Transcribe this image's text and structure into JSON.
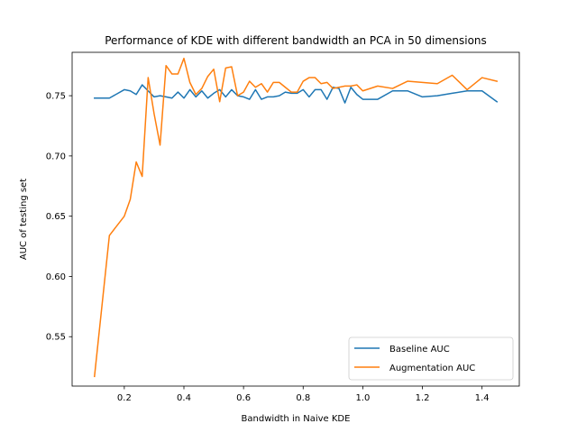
{
  "chart_data": {
    "type": "line",
    "title": "Performance of KDE with different bandwidth an PCA in 50 dimensions",
    "xlabel": "Bandwidth in Naive KDE",
    "ylabel": "AUC of testing set",
    "xlim": [
      0.025,
      1.525
    ],
    "ylim": [
      0.509,
      0.786
    ],
    "x_ticks": [
      0.2,
      0.4,
      0.6,
      0.8,
      1.0,
      1.2,
      1.4
    ],
    "x_tick_labels": [
      "0.2",
      "0.4",
      "0.6",
      "0.8",
      "1.0",
      "1.2",
      "1.4"
    ],
    "y_ticks": [
      0.55,
      0.6,
      0.65,
      0.7,
      0.75
    ],
    "y_tick_labels": [
      "0.55",
      "0.60",
      "0.65",
      "0.70",
      "0.75"
    ],
    "grid": false,
    "legend_position": "bottom-right",
    "series": [
      {
        "name": "Baseline AUC",
        "color": "#1f77b4",
        "points": [
          [
            0.1,
            0.748
          ],
          [
            0.15,
            0.748
          ],
          [
            0.2,
            0.755
          ],
          [
            0.22,
            0.754
          ],
          [
            0.24,
            0.751
          ],
          [
            0.26,
            0.759
          ],
          [
            0.28,
            0.754
          ],
          [
            0.3,
            0.749
          ],
          [
            0.32,
            0.75
          ],
          [
            0.34,
            0.749
          ],
          [
            0.36,
            0.748
          ],
          [
            0.38,
            0.753
          ],
          [
            0.4,
            0.748
          ],
          [
            0.42,
            0.755
          ],
          [
            0.44,
            0.749
          ],
          [
            0.46,
            0.754
          ],
          [
            0.48,
            0.748
          ],
          [
            0.5,
            0.752
          ],
          [
            0.52,
            0.755
          ],
          [
            0.54,
            0.749
          ],
          [
            0.56,
            0.755
          ],
          [
            0.58,
            0.75
          ],
          [
            0.6,
            0.749
          ],
          [
            0.62,
            0.747
          ],
          [
            0.64,
            0.755
          ],
          [
            0.66,
            0.747
          ],
          [
            0.68,
            0.749
          ],
          [
            0.7,
            0.749
          ],
          [
            0.72,
            0.75
          ],
          [
            0.74,
            0.753
          ],
          [
            0.76,
            0.752
          ],
          [
            0.78,
            0.752
          ],
          [
            0.8,
            0.755
          ],
          [
            0.82,
            0.749
          ],
          [
            0.84,
            0.755
          ],
          [
            0.86,
            0.755
          ],
          [
            0.88,
            0.747
          ],
          [
            0.9,
            0.757
          ],
          [
            0.92,
            0.756
          ],
          [
            0.94,
            0.744
          ],
          [
            0.96,
            0.757
          ],
          [
            0.98,
            0.751
          ],
          [
            1.0,
            0.747
          ],
          [
            1.05,
            0.747
          ],
          [
            1.1,
            0.754
          ],
          [
            1.15,
            0.754
          ],
          [
            1.2,
            0.749
          ],
          [
            1.25,
            0.75
          ],
          [
            1.3,
            0.752
          ],
          [
            1.35,
            0.754
          ],
          [
            1.4,
            0.754
          ],
          [
            1.45,
            0.745
          ]
        ]
      },
      {
        "name": "Augmentation AUC",
        "color": "#ff7f0e",
        "points": [
          [
            0.1,
            0.517
          ],
          [
            0.15,
            0.634
          ],
          [
            0.2,
            0.65
          ],
          [
            0.22,
            0.664
          ],
          [
            0.24,
            0.695
          ],
          [
            0.26,
            0.683
          ],
          [
            0.28,
            0.765
          ],
          [
            0.3,
            0.735
          ],
          [
            0.32,
            0.709
          ],
          [
            0.34,
            0.775
          ],
          [
            0.36,
            0.768
          ],
          [
            0.38,
            0.768
          ],
          [
            0.4,
            0.781
          ],
          [
            0.42,
            0.761
          ],
          [
            0.44,
            0.751
          ],
          [
            0.46,
            0.756
          ],
          [
            0.48,
            0.766
          ],
          [
            0.5,
            0.772
          ],
          [
            0.52,
            0.745
          ],
          [
            0.54,
            0.773
          ],
          [
            0.56,
            0.774
          ],
          [
            0.58,
            0.75
          ],
          [
            0.6,
            0.753
          ],
          [
            0.62,
            0.762
          ],
          [
            0.64,
            0.757
          ],
          [
            0.66,
            0.76
          ],
          [
            0.68,
            0.753
          ],
          [
            0.7,
            0.761
          ],
          [
            0.72,
            0.761
          ],
          [
            0.74,
            0.757
          ],
          [
            0.76,
            0.753
          ],
          [
            0.78,
            0.753
          ],
          [
            0.8,
            0.762
          ],
          [
            0.82,
            0.765
          ],
          [
            0.84,
            0.765
          ],
          [
            0.86,
            0.76
          ],
          [
            0.88,
            0.761
          ],
          [
            0.9,
            0.756
          ],
          [
            0.92,
            0.757
          ],
          [
            0.94,
            0.758
          ],
          [
            0.96,
            0.758
          ],
          [
            0.98,
            0.759
          ],
          [
            1.0,
            0.754
          ],
          [
            1.05,
            0.758
          ],
          [
            1.1,
            0.756
          ],
          [
            1.15,
            0.762
          ],
          [
            1.2,
            0.761
          ],
          [
            1.25,
            0.76
          ],
          [
            1.3,
            0.767
          ],
          [
            1.35,
            0.755
          ],
          [
            1.4,
            0.765
          ],
          [
            1.45,
            0.762
          ]
        ]
      }
    ]
  }
}
